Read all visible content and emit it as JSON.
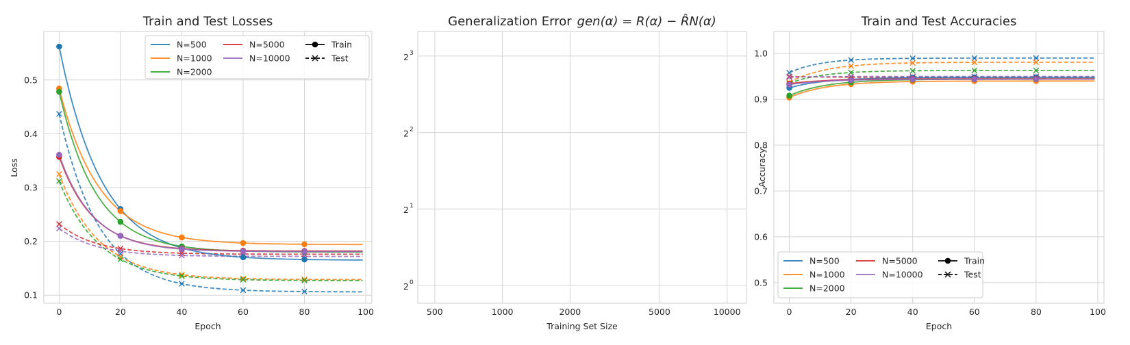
{
  "colors": {
    "N=500": "#1f77b4",
    "N=1000": "#ff7f0e",
    "N=2000": "#2ca02c",
    "N=5000": "#d62728",
    "N=10000": "#9467bd",
    "legend_black": "#000000"
  },
  "chart_data": [
    {
      "type": "line",
      "title": "Train and Test Losses",
      "xlabel": "Epoch",
      "ylabel": "Loss",
      "xlim": [
        -5,
        102
      ],
      "ylim": [
        0.085,
        0.59
      ],
      "xticks": [
        0,
        20,
        40,
        60,
        80,
        100
      ],
      "yticks": [
        0.1,
        0.2,
        0.3,
        0.4,
        0.5
      ],
      "ytick_labels": [
        "0.1",
        "0.2",
        "0.3",
        "0.4",
        "0.5"
      ],
      "marker_x": [
        0,
        20,
        40,
        60,
        80
      ],
      "grid": true,
      "legend": {
        "placement": "upper-right",
        "entries": [
          "N=500",
          "N=1000",
          "N=2000",
          "N=5000",
          "N=10000",
          "Train",
          "Test"
        ]
      },
      "series": [
        {
          "name": "N=500",
          "kind": "Train",
          "start": 0.562,
          "end": 0.165,
          "tau": 14
        },
        {
          "name": "N=1000",
          "kind": "Train",
          "start": 0.484,
          "end": 0.194,
          "tau": 13
        },
        {
          "name": "N=2000",
          "kind": "Train",
          "start": 0.478,
          "end": 0.18,
          "tau": 12
        },
        {
          "name": "N=5000",
          "kind": "Train",
          "start": 0.357,
          "end": 0.182,
          "tau": 11
        },
        {
          "name": "N=10000",
          "kind": "Train",
          "start": 0.361,
          "end": 0.181,
          "tau": 11
        },
        {
          "name": "N=500",
          "kind": "Test",
          "start": 0.437,
          "end": 0.106,
          "tau": 13
        },
        {
          "name": "N=1000",
          "kind": "Test",
          "start": 0.325,
          "end": 0.129,
          "tau": 13
        },
        {
          "name": "N=2000",
          "kind": "Test",
          "start": 0.312,
          "end": 0.127,
          "tau": 13
        },
        {
          "name": "N=5000",
          "kind": "Test",
          "start": 0.232,
          "end": 0.176,
          "tau": 12
        },
        {
          "name": "N=10000",
          "kind": "Test",
          "start": 0.224,
          "end": 0.172,
          "tau": 12
        }
      ]
    },
    {
      "type": "line",
      "title": "Generalization Error",
      "title_math": "gen(α) = R(α) − R̂N(α)",
      "xlabel": "Training Set Size",
      "ylabel": "",
      "xscale": "log",
      "yscale": "log2",
      "xlim": [
        420,
        12200
      ],
      "ylim": [
        0.85,
        10.0
      ],
      "xticks": [
        500,
        1000,
        2000,
        5000,
        10000
      ],
      "xtick_labels": [
        "500",
        "1000",
        "2000",
        "5000",
        "10000"
      ],
      "yticks": [
        1,
        2,
        4,
        8
      ],
      "ytick_bases": [
        "2",
        "2",
        "2",
        "2"
      ],
      "ytick_exponents": [
        "0",
        "1",
        "2",
        "3"
      ],
      "grid": true,
      "series": []
    },
    {
      "type": "line",
      "title": "Train and Test Accuracies",
      "xlabel": "Epoch",
      "ylabel": "Accuracy",
      "xlim": [
        -5,
        102
      ],
      "ylim": [
        0.455,
        1.048
      ],
      "xticks": [
        0,
        20,
        40,
        60,
        80,
        100
      ],
      "yticks": [
        0.5,
        0.6,
        0.7,
        0.8,
        0.9,
        1.0
      ],
      "ytick_labels": [
        "0.5",
        "0.6",
        "0.7",
        "0.8",
        "0.9",
        "1.0"
      ],
      "marker_x": [
        0,
        20,
        40,
        60,
        80
      ],
      "grid": true,
      "legend": {
        "placement": "lower-left",
        "entries": [
          "N=500",
          "N=1000",
          "N=2000",
          "N=5000",
          "N=10000",
          "Train",
          "Test"
        ]
      },
      "series": [
        {
          "name": "N=500",
          "kind": "Train",
          "start": 0.925,
          "end": 0.948,
          "tau": 12
        },
        {
          "name": "N=1000",
          "kind": "Train",
          "start": 0.904,
          "end": 0.94,
          "tau": 12
        },
        {
          "name": "N=2000",
          "kind": "Train",
          "start": 0.908,
          "end": 0.944,
          "tau": 12
        },
        {
          "name": "N=5000",
          "kind": "Train",
          "start": 0.934,
          "end": 0.945,
          "tau": 12
        },
        {
          "name": "N=10000",
          "kind": "Train",
          "start": 0.932,
          "end": 0.944,
          "tau": 12
        },
        {
          "name": "N=500",
          "kind": "Test",
          "start": 0.958,
          "end": 0.99,
          "tau": 10
        },
        {
          "name": "N=1000",
          "kind": "Test",
          "start": 0.937,
          "end": 0.981,
          "tau": 12
        },
        {
          "name": "N=2000",
          "kind": "Test",
          "start": 0.935,
          "end": 0.963,
          "tau": 11
        },
        {
          "name": "N=5000",
          "kind": "Test",
          "start": 0.95,
          "end": 0.948,
          "tau": 10
        },
        {
          "name": "N=10000",
          "kind": "Test",
          "start": 0.948,
          "end": 0.95,
          "tau": 10
        }
      ]
    }
  ]
}
